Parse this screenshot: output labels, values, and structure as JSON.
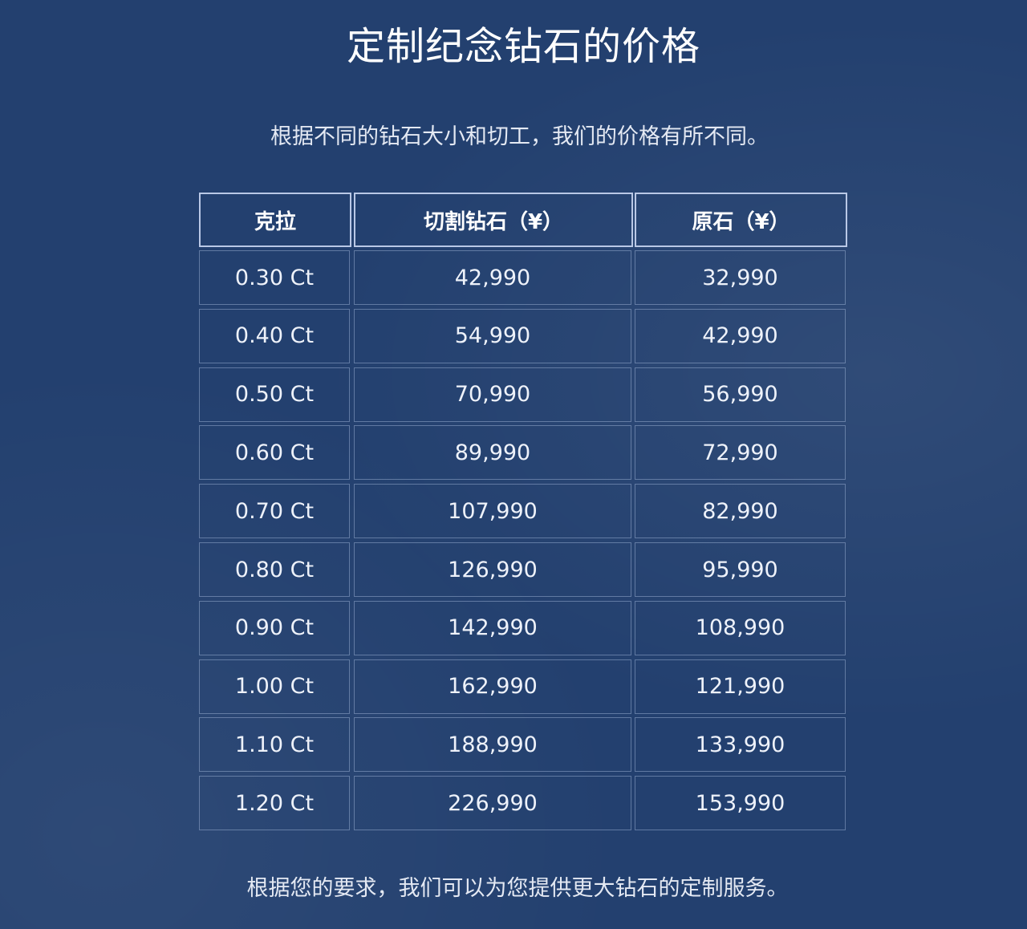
{
  "title": "定制纪念钻石的价格",
  "subtitle": "根据不同的钻石大小和切工，我们的价格有所不同。",
  "table": {
    "headers": [
      "克拉",
      "切割钻石（¥）",
      "原石（¥）"
    ],
    "rows": [
      [
        "0.30 Ct",
        "42,990",
        "32,990"
      ],
      [
        "0.40 Ct",
        "54,990",
        "42,990"
      ],
      [
        "0.50 Ct",
        "70,990",
        "56,990"
      ],
      [
        "0.60 Ct",
        "89,990",
        "72,990"
      ],
      [
        "0.70 Ct",
        "107,990",
        "82,990"
      ],
      [
        "0.80 Ct",
        "126,990",
        "95,990"
      ],
      [
        "0.90 Ct",
        "142,990",
        "108,990"
      ],
      [
        "1.00 Ct",
        "162,990",
        "121,990"
      ],
      [
        "1.10 Ct",
        "188,990",
        "133,990"
      ],
      [
        "1.20 Ct",
        "226,990",
        "153,990"
      ]
    ]
  },
  "footer": "根据您的要求，我们可以为您提供更大钻石的定制服务。",
  "colors": {
    "background": "#23406f",
    "header_border": "#b9c8e6"
  }
}
